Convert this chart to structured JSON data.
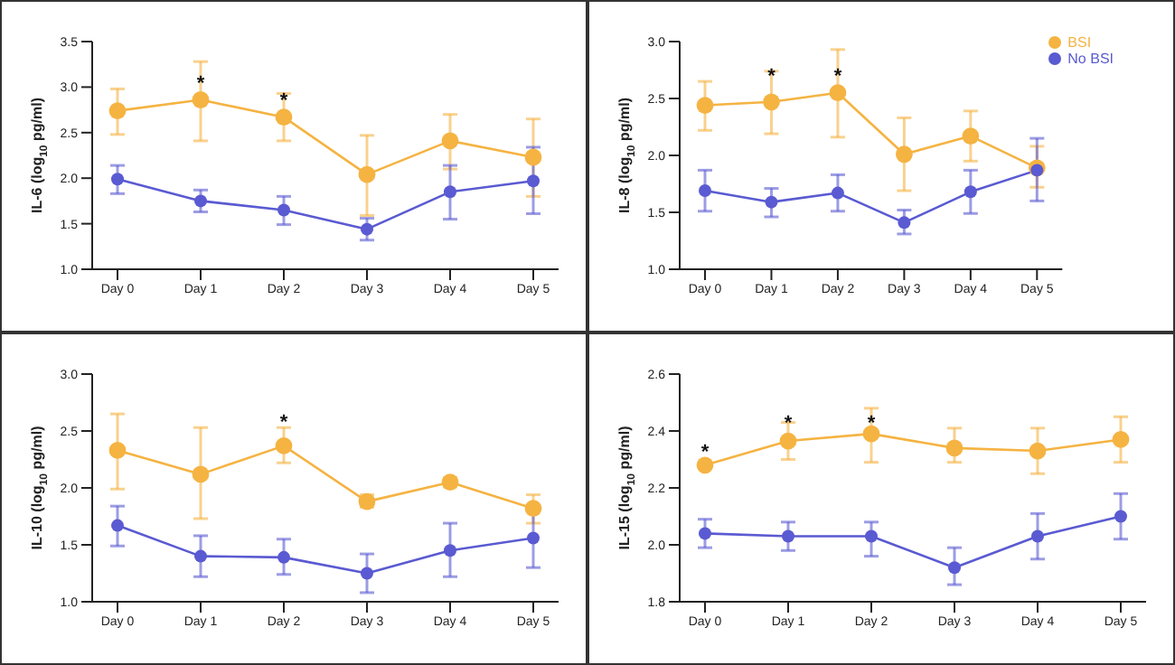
{
  "chart_data": [
    {
      "type": "line",
      "ylabel": "IL-6 (log$_{10}$ pg/ml)",
      "categories": [
        "Day 0",
        "Day 1",
        "Day 2",
        "Day 3",
        "Day 4",
        "Day 5"
      ],
      "ylim": [
        1.0,
        3.5
      ],
      "yticks": [
        {
          "value": 1.0,
          "label": "1.0"
        },
        {
          "value": 1.5,
          "label": "1.5"
        },
        {
          "value": 2.0,
          "label": "2.0"
        },
        {
          "value": 2.5,
          "label": "2.5"
        },
        {
          "value": 3.0,
          "label": "3.0"
        },
        {
          "value": 3.5,
          "label": "3.5"
        }
      ],
      "grid": false,
      "legend": false,
      "marker": "circle",
      "series": [
        {
          "color": "#f5b342",
          "values": [
            2.74,
            2.86,
            2.67,
            2.04,
            2.41,
            2.23
          ],
          "errors": [
            [
              2.48,
              2.98
            ],
            [
              2.41,
              3.28
            ],
            [
              2.41,
              2.93
            ],
            [
              1.59,
              2.47
            ],
            [
              2.1,
              2.7
            ],
            [
              1.8,
              2.65
            ]
          ]
        },
        {
          "color": "#5a5ad2",
          "values": [
            1.99,
            1.75,
            1.65,
            1.44,
            1.85,
            1.97
          ],
          "errors": [
            [
              1.83,
              2.14
            ],
            [
              1.63,
              1.87
            ],
            [
              1.49,
              1.8
            ],
            [
              1.32,
              1.56
            ],
            [
              1.55,
              2.14
            ],
            [
              1.61,
              2.34
            ]
          ]
        }
      ],
      "annotations": [
        {
          "text": "*",
          "x": "Day 1",
          "y": 2.89
        },
        {
          "text": "*",
          "x": "Day 2",
          "y": 2.71
        }
      ]
    },
    {
      "type": "line",
      "ylabel": "IL-8 (log$_{10}$ pg/ml)",
      "categories": [
        "Day 0",
        "Day 1",
        "Day 2",
        "Day 3",
        "Day 4",
        "Day 5"
      ],
      "ylim": [
        1.0,
        3.0
      ],
      "yticks": [
        {
          "value": 1.0,
          "label": "1.0"
        },
        {
          "value": 1.5,
          "label": "1.5"
        },
        {
          "value": 2.0,
          "label": "2.0"
        },
        {
          "value": 2.5,
          "label": "2.5"
        },
        {
          "value": 3.0,
          "label": "3.0"
        }
      ],
      "grid": false,
      "legend": "top right",
      "marker": "circle",
      "series": [
        {
          "name": "BSI",
          "color": "#f5b342",
          "values": [
            2.44,
            2.47,
            2.55,
            2.01,
            2.17,
            1.89
          ],
          "errors": [
            [
              2.22,
              2.65
            ],
            [
              2.19,
              2.74
            ],
            [
              2.16,
              2.93
            ],
            [
              1.69,
              2.33
            ],
            [
              1.95,
              2.39
            ],
            [
              1.72,
              2.08
            ]
          ]
        },
        {
          "name": "No BSI",
          "color": "#5a5ad2",
          "values": [
            1.69,
            1.59,
            1.67,
            1.41,
            1.68,
            1.87
          ],
          "errors": [
            [
              1.51,
              1.87
            ],
            [
              1.46,
              1.71
            ],
            [
              1.51,
              1.83
            ],
            [
              1.31,
              1.52
            ],
            [
              1.49,
              1.87
            ],
            [
              1.6,
              2.15
            ]
          ]
        }
      ],
      "annotations": [
        {
          "text": "*",
          "x": "Day 1",
          "y": 2.58
        },
        {
          "text": "*",
          "x": "Day 2",
          "y": 2.58
        }
      ]
    },
    {
      "type": "line",
      "ylabel": "IL-10 (log$_{10}$ pg/ml)",
      "categories": [
        "Day 0",
        "Day 1",
        "Day 2",
        "Day 3",
        "Day 4",
        "Day 5"
      ],
      "ylim": [
        1.0,
        3.0
      ],
      "yticks": [
        {
          "value": 1.0,
          "label": "1.0"
        },
        {
          "value": 1.5,
          "label": "1.5"
        },
        {
          "value": 2.0,
          "label": "2.0"
        },
        {
          "value": 2.5,
          "label": "2.5"
        },
        {
          "value": 3.0,
          "label": "3.0"
        }
      ],
      "grid": false,
      "legend": false,
      "marker": "circle",
      "series": [
        {
          "color": "#f5b342",
          "values": [
            2.33,
            2.12,
            2.37,
            1.88,
            2.05,
            1.82
          ],
          "errors": [
            [
              1.99,
              2.65
            ],
            [
              1.73,
              2.53
            ],
            [
              2.22,
              2.53
            ],
            [
              1.83,
              1.94
            ],
            [
              2.01,
              2.09
            ],
            [
              1.69,
              1.94
            ]
          ]
        },
        {
          "color": "#5a5ad2",
          "values": [
            1.67,
            1.4,
            1.39,
            1.25,
            1.45,
            1.56
          ],
          "errors": [
            [
              1.49,
              1.84
            ],
            [
              1.22,
              1.58
            ],
            [
              1.24,
              1.55
            ],
            [
              1.08,
              1.42
            ],
            [
              1.22,
              1.69
            ],
            [
              1.3,
              1.83
            ]
          ]
        }
      ],
      "annotations": [
        {
          "text": "*",
          "x": "Day 2",
          "y": 2.46
        }
      ]
    },
    {
      "type": "line",
      "ylabel": "IL-15 (log$_{10}$ pg/ml)",
      "categories": [
        "Day 0",
        "Day 1",
        "Day 2",
        "Day 3",
        "Day 4",
        "Day 5"
      ],
      "ylim": [
        1.8,
        2.6
      ],
      "yticks": [
        {
          "value": 1.8,
          "label": "1.8"
        },
        {
          "value": 2.0,
          "label": "2.0"
        },
        {
          "value": 2.2,
          "label": "2.2"
        },
        {
          "value": 2.4,
          "label": "2.4"
        },
        {
          "value": 2.6,
          "label": "2.6"
        }
      ],
      "grid": false,
      "legend": false,
      "marker": "circle",
      "series": [
        {
          "color": "#f5b342",
          "values": [
            2.28,
            2.365,
            2.39,
            2.34,
            2.33,
            2.37
          ],
          "errors": [
            null,
            [
              2.3,
              2.43
            ],
            [
              2.29,
              2.48
            ],
            [
              2.29,
              2.41
            ],
            [
              2.25,
              2.41
            ],
            [
              2.29,
              2.45
            ]
          ]
        },
        {
          "color": "#5a5ad2",
          "values": [
            2.04,
            2.03,
            2.03,
            1.92,
            2.03,
            2.1
          ],
          "errors": [
            [
              1.99,
              2.09
            ],
            [
              1.98,
              2.08
            ],
            [
              1.96,
              2.08
            ],
            [
              1.86,
              1.99
            ],
            [
              1.95,
              2.11
            ],
            [
              2.02,
              2.18
            ]
          ]
        }
      ],
      "annotations": [
        {
          "text": "*",
          "x": "Day 0",
          "y": 2.28
        },
        {
          "text": "*",
          "x": "Day 1",
          "y": 2.38
        },
        {
          "text": "*",
          "x": "Day 2",
          "y": 2.38
        }
      ]
    }
  ]
}
